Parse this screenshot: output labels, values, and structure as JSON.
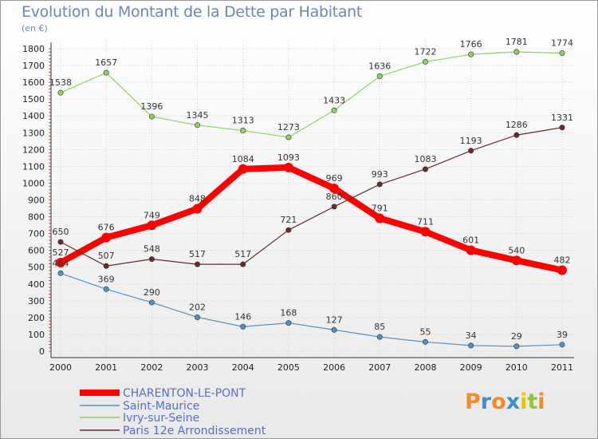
{
  "title": "Evolution du Montant de la Dette par Habitant",
  "unit": "(en €)",
  "logo": "Proxiti",
  "chart_data": {
    "type": "line",
    "title": "Evolution du Montant de la Dette par Habitant",
    "ylabel": "(en €)",
    "xlabel": "",
    "ylim": [
      0,
      1800
    ],
    "yticks": [
      0,
      100,
      200,
      300,
      400,
      500,
      600,
      700,
      800,
      900,
      1000,
      1100,
      1200,
      1300,
      1400,
      1500,
      1600,
      1700,
      1800
    ],
    "categories": [
      "2000",
      "2001",
      "2002",
      "2003",
      "2004",
      "2005",
      "2006",
      "2007",
      "2008",
      "2009",
      "2010",
      "2011"
    ],
    "series": [
      {
        "name": "CHARENTON-LE-PONT",
        "color": "#ff0000",
        "values": [
          527,
          676,
          749,
          848,
          1084,
          1093,
          969,
          791,
          711,
          601,
          540,
          482
        ]
      },
      {
        "name": "Saint-Maurice",
        "color": "#4f94c8",
        "values": [
          464,
          369,
          290,
          202,
          146,
          168,
          127,
          85,
          55,
          34,
          29,
          39
        ]
      },
      {
        "name": "Ivry-sur-Seine",
        "color": "#8dd35f",
        "values": [
          1538,
          1657,
          1396,
          1345,
          1313,
          1273,
          1433,
          1636,
          1722,
          1766,
          1781,
          1774
        ]
      },
      {
        "name": "Paris 12e  Arrondissement",
        "color": "#6b2a2a",
        "values": [
          650,
          507,
          548,
          517,
          517,
          721,
          860,
          993,
          1083,
          1193,
          1286,
          1331
        ]
      }
    ]
  }
}
